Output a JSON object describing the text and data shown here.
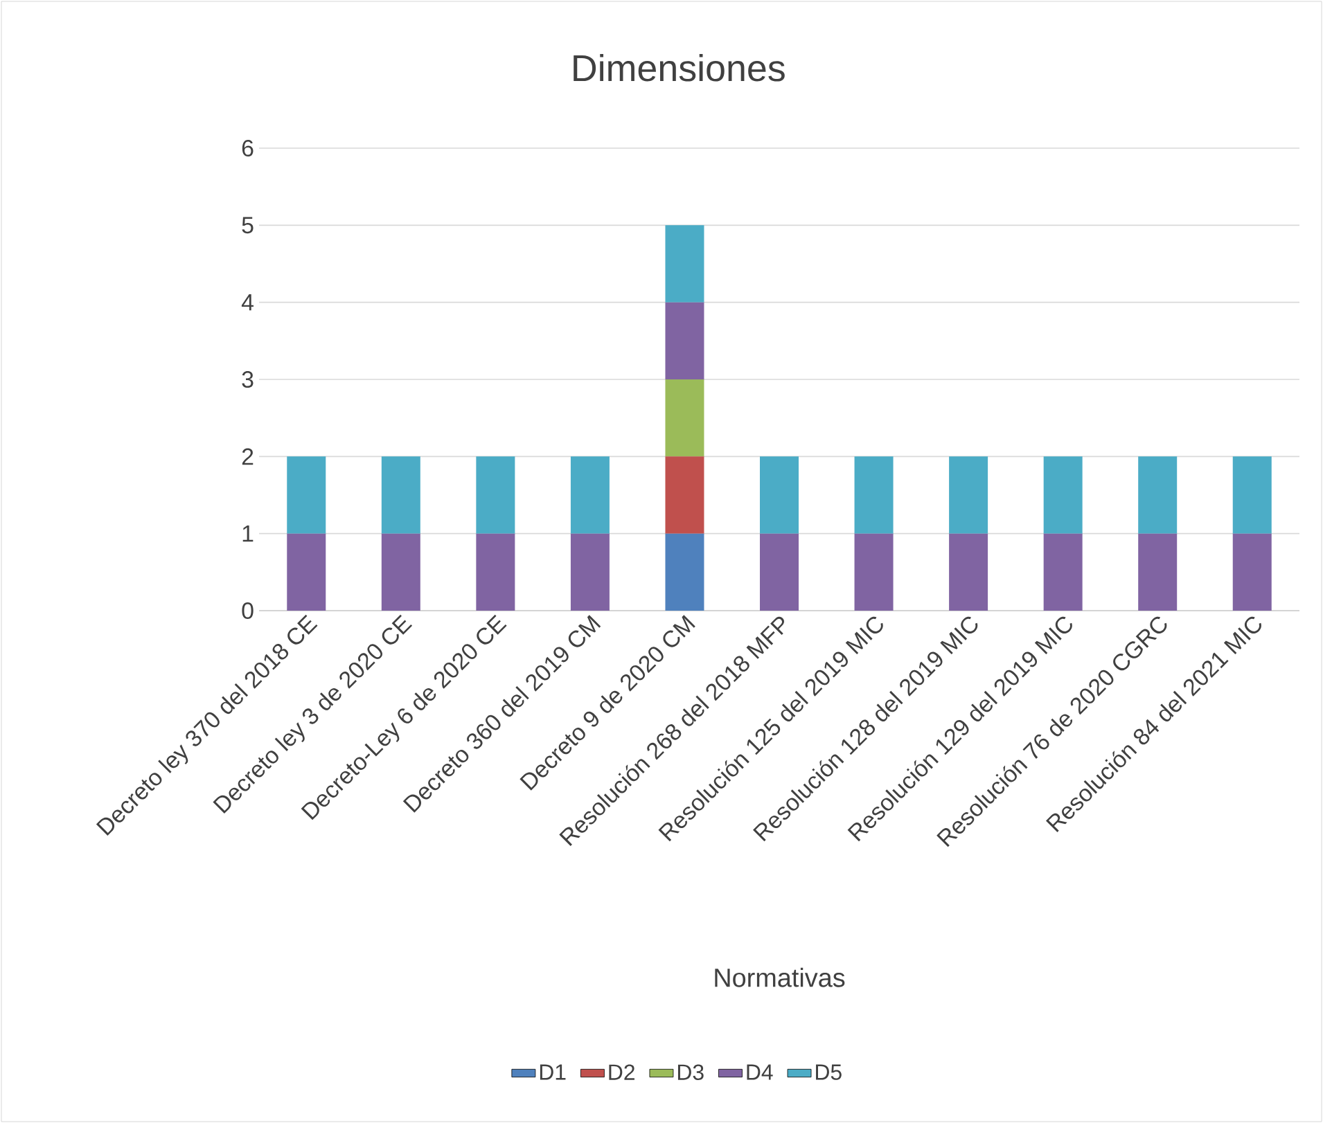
{
  "chart_data": {
    "type": "bar",
    "stacked": true,
    "title": "Dimensiones",
    "xlabel": "Normativas",
    "categories": [
      "Decreto ley 370 del 2018 CE",
      "Decreto ley 3 de 2020 CE",
      "Decreto-Ley 6 de 2020 CE",
      "Decreto 360 del 2019 CM",
      "Decreto 9 de 2020 CM",
      "Resolución 268 del 2018 MFP",
      "Resolución 125 del 2019 MIC",
      "Resolución 128 del 2019 MIC",
      "Resolución 129 del 2019 MIC",
      "Resolución 76 de 2020 CGRC",
      "Resolución 84 del 2021 MIC"
    ],
    "series": [
      {
        "name": "D1",
        "color": "#4f81bd",
        "values": [
          0,
          0,
          0,
          0,
          1,
          0,
          0,
          0,
          0,
          0,
          0
        ]
      },
      {
        "name": "D2",
        "color": "#c0504d",
        "values": [
          0,
          0,
          0,
          0,
          1,
          0,
          0,
          0,
          0,
          0,
          0
        ]
      },
      {
        "name": "D3",
        "color": "#9bbb59",
        "values": [
          0,
          0,
          0,
          0,
          1,
          0,
          0,
          0,
          0,
          0,
          0
        ]
      },
      {
        "name": "D4",
        "color": "#8064a2",
        "values": [
          1,
          1,
          1,
          1,
          1,
          1,
          1,
          1,
          1,
          1,
          1
        ]
      },
      {
        "name": "D5",
        "color": "#4bacc6",
        "values": [
          1,
          1,
          1,
          1,
          1,
          1,
          1,
          1,
          1,
          1,
          1
        ]
      }
    ],
    "ylim": [
      0,
      6
    ],
    "yticks": [
      0,
      1,
      2,
      3,
      4,
      5,
      6
    ],
    "grid": "y",
    "legend": "bottom"
  }
}
